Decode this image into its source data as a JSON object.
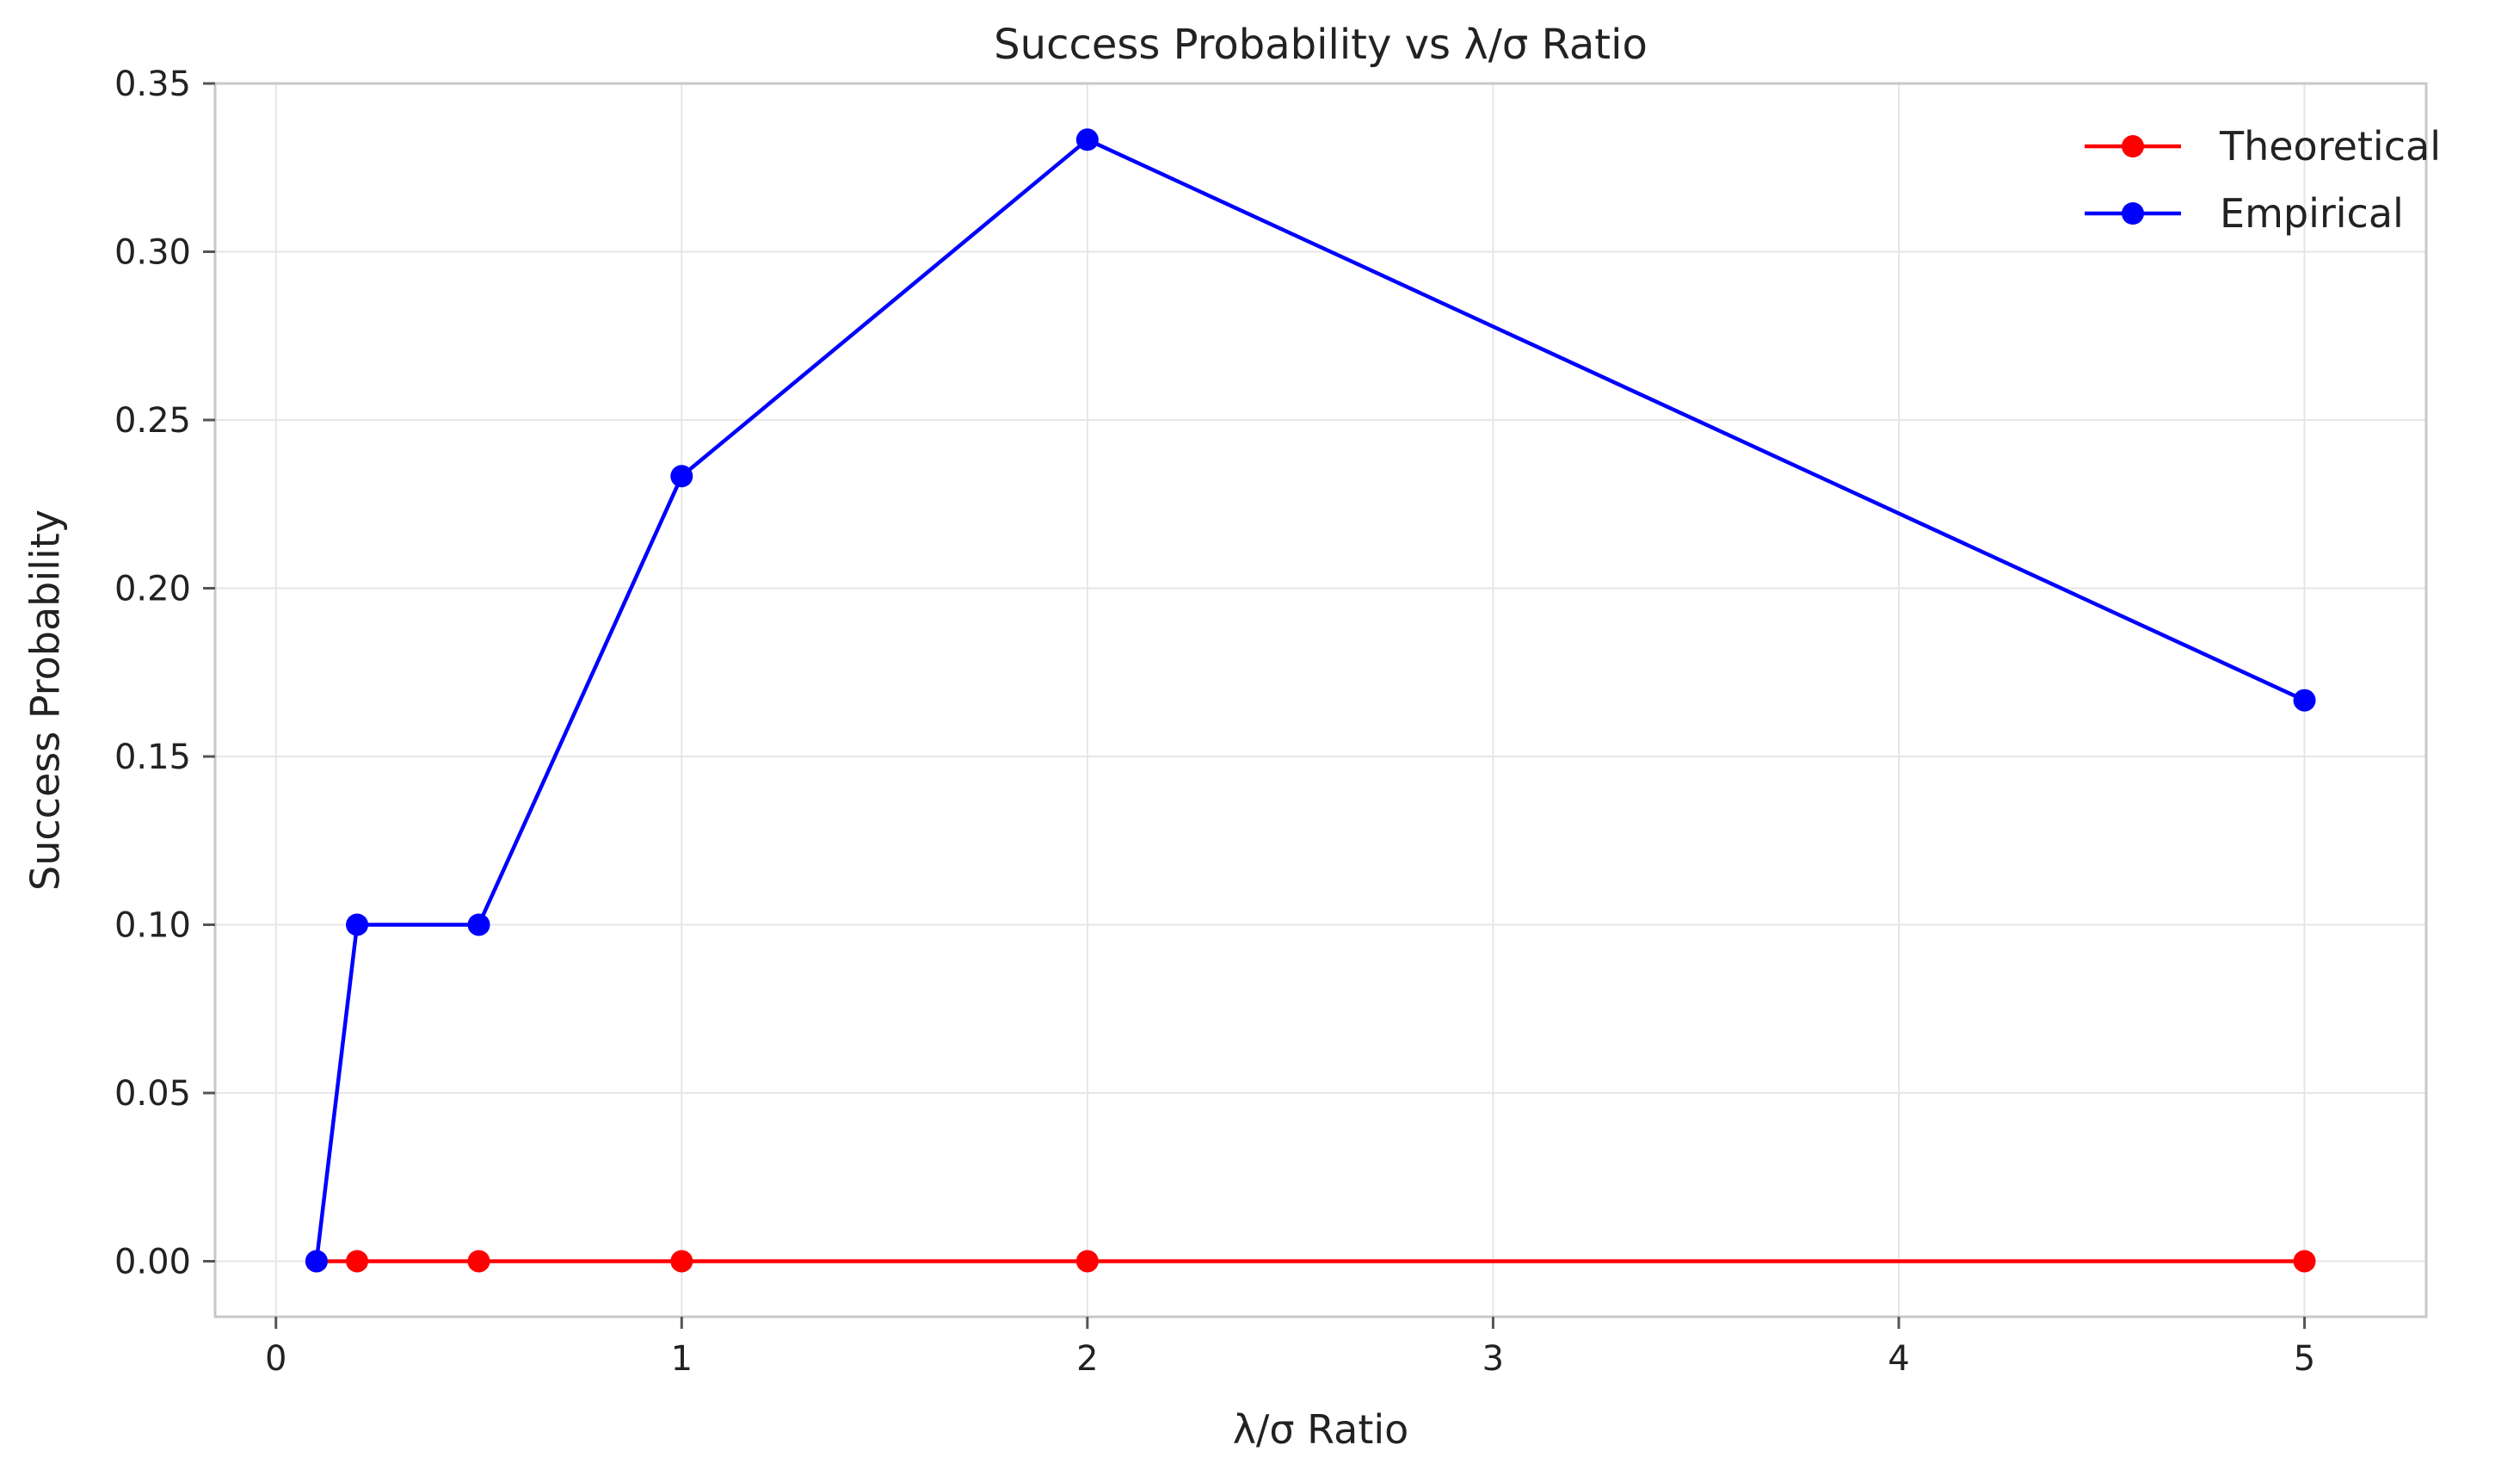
{
  "chart_data": {
    "type": "line",
    "title": "Success Probability vs λ/σ Ratio",
    "xlabel": "λ/σ Ratio",
    "ylabel": "Success Probability",
    "xlim": [
      -0.15,
      5.3
    ],
    "ylim": [
      -0.0165,
      0.35
    ],
    "xticks": [
      0,
      1,
      2,
      3,
      4,
      5
    ],
    "xtick_labels": [
      "0",
      "1",
      "2",
      "3",
      "4",
      "5"
    ],
    "yticks": [
      0.0,
      0.05,
      0.1,
      0.15,
      0.2,
      0.25,
      0.3,
      0.35
    ],
    "ytick_labels": [
      "0.00",
      "0.05",
      "0.10",
      "0.15",
      "0.20",
      "0.25",
      "0.30",
      "0.35"
    ],
    "grid": true,
    "legend_position": "top-right",
    "x": [
      0.1,
      0.2,
      0.5,
      1,
      2,
      5
    ],
    "series": [
      {
        "name": "Theoretical",
        "color": "#ff0000",
        "values": [
          0.0,
          0.0,
          0.0,
          0.0,
          0.0,
          0.0
        ]
      },
      {
        "name": "Empirical",
        "color": "#0000ff",
        "values": [
          0.0,
          0.1,
          0.1,
          0.2333,
          0.3333,
          0.1667
        ]
      }
    ]
  }
}
